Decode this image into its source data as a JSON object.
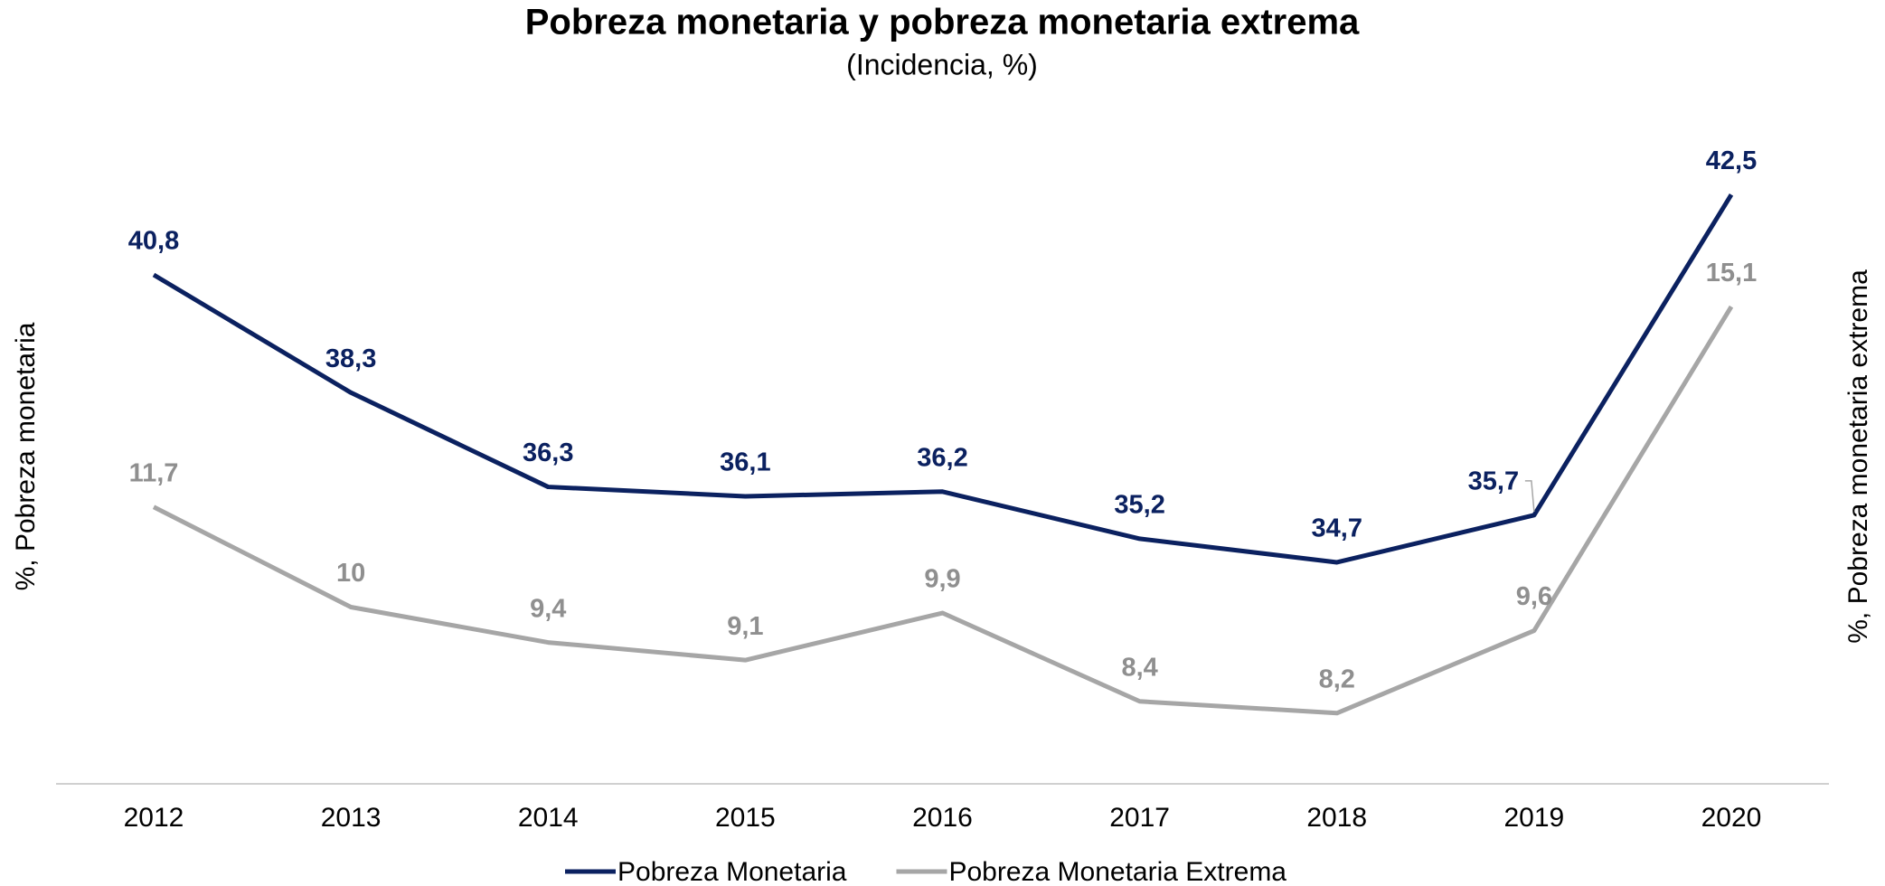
{
  "chart_data": {
    "type": "line",
    "title": "Pobreza monetaria y pobreza monetaria extrema",
    "subtitle": "(Incidencia, %)",
    "ylabel": "%, Pobreza monetaria",
    "y2label": "%, Pobreza monetaria extrema",
    "categories": [
      "2012",
      "2013",
      "2014",
      "2015",
      "2016",
      "2017",
      "2018",
      "2019",
      "2020"
    ],
    "ylim": [
      30,
      45
    ],
    "y2lim": [
      7,
      19
    ],
    "series": [
      {
        "name": "Pobreza Monetaria",
        "color": "#0b2160",
        "values": [
          40.8,
          38.3,
          36.3,
          36.1,
          36.2,
          35.2,
          34.7,
          35.7,
          42.5
        ],
        "value_labels": [
          "40,8",
          "38,3",
          "36,3",
          "36,1",
          "36,2",
          "35,2",
          "34,7",
          "35,7",
          "42,5"
        ]
      },
      {
        "name": "Pobreza Monetaria Extrema",
        "color": "#a6a6a6",
        "axis": "y2",
        "values": [
          11.7,
          10,
          9.4,
          9.1,
          9.9,
          8.4,
          8.2,
          9.6,
          15.1
        ],
        "value_labels": [
          "11,7",
          "10",
          "9,4",
          "9,1",
          "9,9",
          "8,4",
          "8,2",
          "9,6",
          "15,1"
        ]
      }
    ],
    "legend": "bottom"
  }
}
